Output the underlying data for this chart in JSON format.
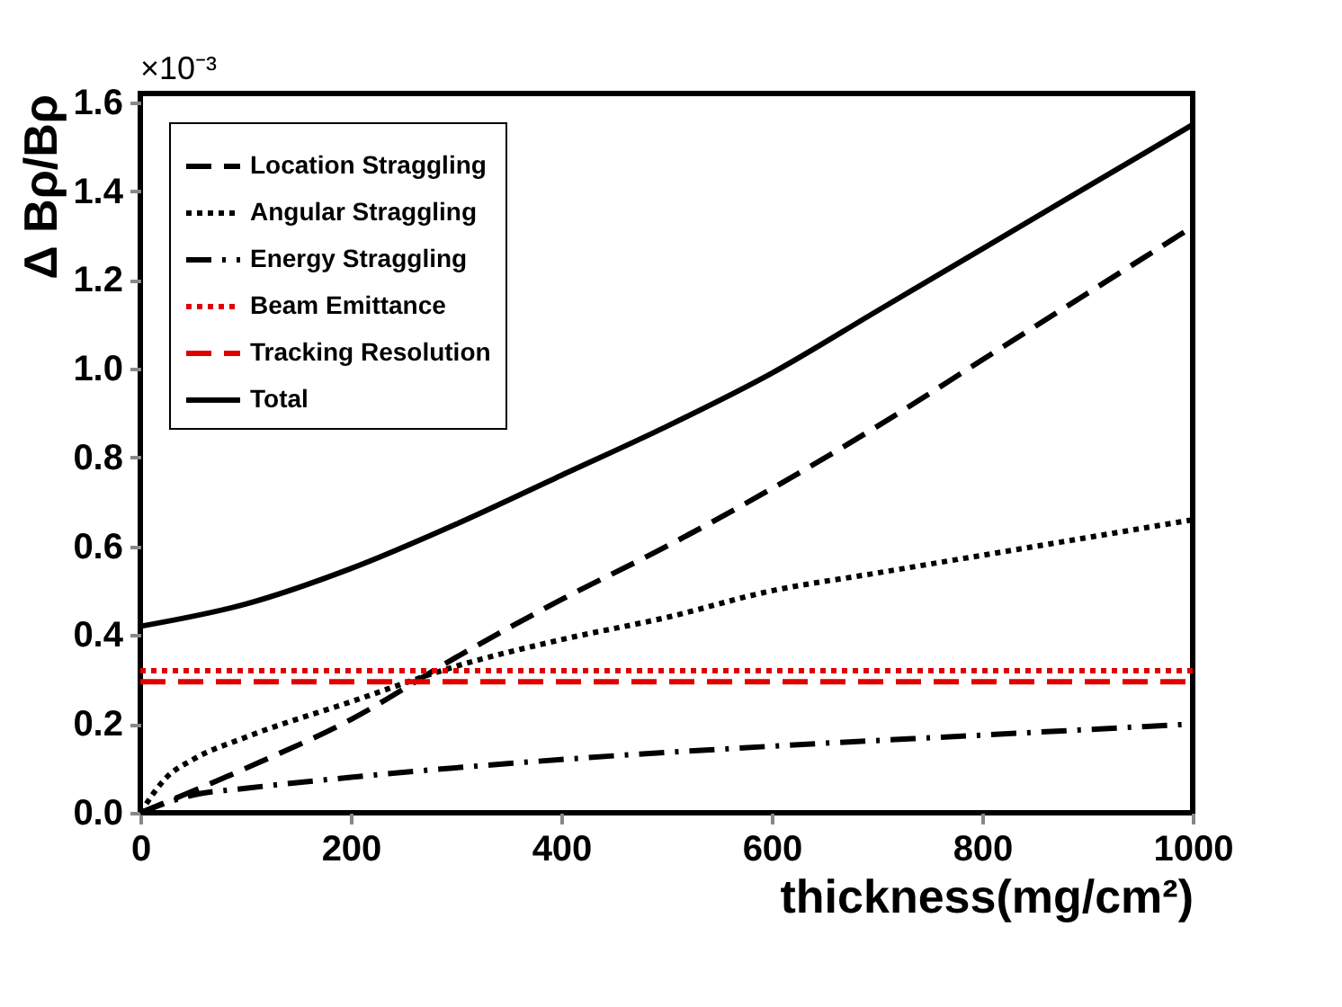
{
  "chart_data": {
    "type": "line",
    "xlabel": "thickness(mg/cm²)",
    "ylabel": "Δ Bρ/Bρ",
    "annotations": [
      "×10⁻³"
    ],
    "xlim": [
      0,
      1000
    ],
    "ylim": [
      0,
      1.62
    ],
    "xticks": [
      0,
      200,
      400,
      600,
      800,
      1000
    ],
    "yticks": [
      {
        "value": 0,
        "label": "0.0"
      },
      {
        "value": 0.2,
        "label": "0.2"
      },
      {
        "value": 0.4,
        "label": "0.4"
      },
      {
        "value": 0.6,
        "label": "0.6"
      },
      {
        "value": 0.8,
        "label": "0.8"
      },
      {
        "value": 1.0,
        "label": "1.0"
      },
      {
        "value": 1.2,
        "label": "1.2"
      },
      {
        "value": 1.4,
        "label": "1.4"
      },
      {
        "value": 1.6,
        "label": "1.6"
      }
    ],
    "grid": false,
    "legend": "top left",
    "marker": "none",
    "series": [
      {
        "name": "Location Straggling",
        "color": "#000000",
        "line_style": "dashed",
        "x": [
          0,
          100,
          200,
          300,
          400,
          500,
          600,
          700,
          800,
          900,
          1000
        ],
        "values": [
          0,
          0.1,
          0.21,
          0.35,
          0.48,
          0.6,
          0.73,
          0.87,
          1.02,
          1.17,
          1.32
        ]
      },
      {
        "name": "Angular Straggling",
        "color": "#000000",
        "line_style": "dotted",
        "x": [
          0,
          25,
          50,
          100,
          200,
          300,
          400,
          500,
          600,
          700,
          800,
          900,
          1000
        ],
        "values": [
          0,
          0.08,
          0.12,
          0.17,
          0.25,
          0.33,
          0.39,
          0.44,
          0.5,
          0.54,
          0.58,
          0.62,
          0.66
        ]
      },
      {
        "name": "Energy Straggling",
        "color": "#000000",
        "line_style": "dashdot",
        "x": [
          0,
          50,
          100,
          200,
          400,
          600,
          800,
          1000
        ],
        "values": [
          0,
          0.04,
          0.055,
          0.08,
          0.12,
          0.15,
          0.175,
          0.2
        ]
      },
      {
        "name": "Beam Emittance",
        "color": "#e00000",
        "line_style": "dotted",
        "x": [
          0,
          1000
        ],
        "values": [
          0.32,
          0.32
        ]
      },
      {
        "name": "Tracking Resolution",
        "color": "#e00000",
        "line_style": "dashed",
        "x": [
          0,
          1000
        ],
        "values": [
          0.295,
          0.295
        ]
      },
      {
        "name": "Total",
        "color": "#000000",
        "line_style": "solid",
        "x": [
          0,
          100,
          200,
          300,
          400,
          500,
          600,
          700,
          800,
          900,
          1000
        ],
        "values": [
          0.42,
          0.47,
          0.55,
          0.65,
          0.76,
          0.87,
          0.99,
          1.13,
          1.27,
          1.41,
          1.55
        ]
      }
    ]
  }
}
